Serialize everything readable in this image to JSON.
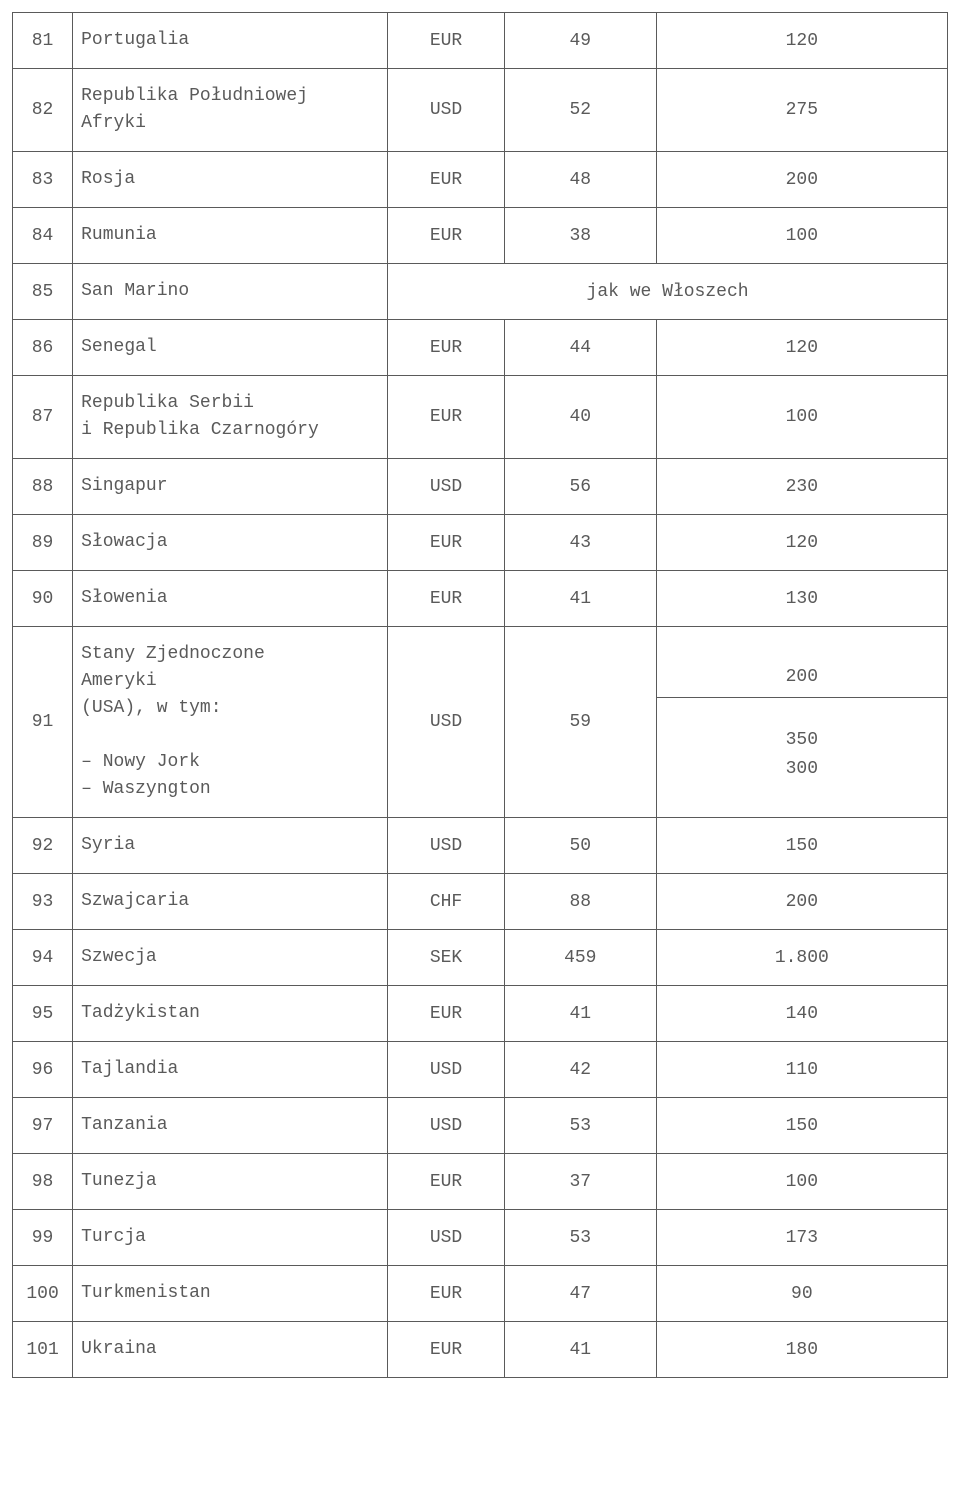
{
  "table": {
    "border_color": "#5a5a5a",
    "text_color": "#5a5a5a",
    "font_family": "Courier New",
    "font_size_pt": 14,
    "columns": [
      "num",
      "name",
      "currency",
      "value1",
      "value2"
    ],
    "col_widths_pct": [
      5.5,
      34.5,
      12,
      16,
      32
    ],
    "col_align": [
      "center",
      "left",
      "center",
      "center",
      "center"
    ],
    "rows": [
      {
        "num": "81",
        "name": "Portugalia",
        "cur": "EUR",
        "v1": "49",
        "v2": "120"
      },
      {
        "num": "82",
        "name": "Republika Południowej\nAfryki",
        "cur": "USD",
        "v1": "52",
        "v2": "275"
      },
      {
        "num": "83",
        "name": "Rosja",
        "cur": "EUR",
        "v1": "48",
        "v2": "200"
      },
      {
        "num": "84",
        "name": "Rumunia",
        "cur": "EUR",
        "v1": "38",
        "v2": "100"
      },
      {
        "num": "85",
        "name": "San Marino",
        "merged": "jak we Włoszech"
      },
      {
        "num": "86",
        "name": "Senegal",
        "cur": "EUR",
        "v1": "44",
        "v2": "120"
      },
      {
        "num": "87",
        "name": "Republika Serbii\ni Republika Czarnogóry",
        "cur": "EUR",
        "v1": "40",
        "v2": "100"
      },
      {
        "num": "88",
        "name": "Singapur",
        "cur": "USD",
        "v1": "56",
        "v2": "230"
      },
      {
        "num": "89",
        "name": "Słowacja",
        "cur": "EUR",
        "v1": "43",
        "v2": "120"
      },
      {
        "num": "90",
        "name": "Słowenia",
        "cur": "EUR",
        "v1": "41",
        "v2": "130"
      },
      {
        "num": "91",
        "name": "Stany Zjednoczone\nAmeryki\n(USA), w tym:\n\n– Nowy Jork\n– Waszyngton",
        "cur": "USD",
        "v1": "59",
        "v2_split": {
          "top": "200",
          "bottom": "350\n300"
        }
      },
      {
        "num": "92",
        "name": "Syria",
        "cur": "USD",
        "v1": "50",
        "v2": "150"
      },
      {
        "num": "93",
        "name": "Szwajcaria",
        "cur": "CHF",
        "v1": "88",
        "v2": "200"
      },
      {
        "num": "94",
        "name": "Szwecja",
        "cur": "SEK",
        "v1": "459",
        "v2": "1.800"
      },
      {
        "num": "95",
        "name": "Tadżykistan",
        "cur": "EUR",
        "v1": "41",
        "v2": "140"
      },
      {
        "num": "96",
        "name": "Tajlandia",
        "cur": "USD",
        "v1": "42",
        "v2": "110"
      },
      {
        "num": "97",
        "name": "Tanzania",
        "cur": "USD",
        "v1": "53",
        "v2": "150"
      },
      {
        "num": "98",
        "name": "Tunezja",
        "cur": "EUR",
        "v1": "37",
        "v2": "100"
      },
      {
        "num": "99",
        "name": "Turcja",
        "cur": "USD",
        "v1": "53",
        "v2": "173"
      },
      {
        "num": "100",
        "name": "Turkmenistan",
        "cur": "EUR",
        "v1": "47",
        "v2": "90"
      },
      {
        "num": "101",
        "name": "Ukraina",
        "cur": "EUR",
        "v1": "41",
        "v2": "180"
      }
    ]
  }
}
